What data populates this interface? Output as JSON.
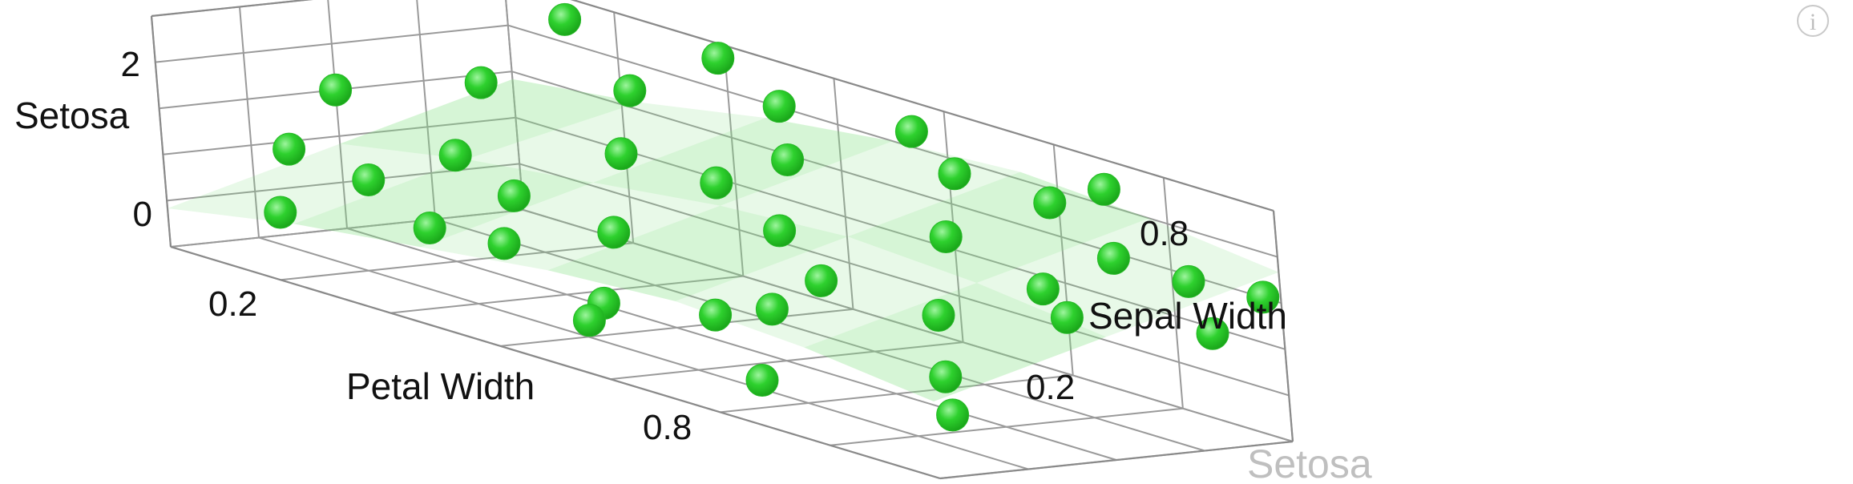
{
  "info_icon": "info-icon",
  "caption": "Setosa",
  "chart_data": {
    "type": "scatter3d",
    "title": "",
    "xlabel": "Petal Width",
    "ylabel": "Sepal Width",
    "zlabel": "Setosa",
    "x_ticks": [
      "0.2",
      "0.8"
    ],
    "y_ticks": [
      "0.2",
      "0.8"
    ],
    "z_ticks": [
      "0",
      "2"
    ],
    "xlim": [
      0,
      1
    ],
    "ylim": [
      0,
      1
    ],
    "zlim": [
      -0.5,
      2.5
    ],
    "grid": true,
    "point_color": "#2ed12e",
    "surface_color": "#7fe07f",
    "surface_bands": [
      {
        "name": "",
        "values": [
          [
            1.2,
            1.4,
            1.7,
            1.9,
            2.0,
            1.9,
            1.7
          ],
          [
            0.6,
            0.9,
            1.1,
            1.3,
            1.4,
            1.3,
            1.1
          ],
          [
            0.0,
            0.3,
            0.5,
            0.7,
            0.8,
            0.7,
            0.5
          ]
        ]
      }
    ],
    "points": [
      {
        "x": 0.0,
        "y": 0.5,
        "z": 1.3
      },
      {
        "x": 0.05,
        "y": 0.25,
        "z": 0.8
      },
      {
        "x": 0.1,
        "y": 0.7,
        "z": 1.6
      },
      {
        "x": 0.15,
        "y": 0.0,
        "z": 0.4
      },
      {
        "x": 0.2,
        "y": 0.4,
        "z": 1.1
      },
      {
        "x": 0.25,
        "y": 0.8,
        "z": 1.9
      },
      {
        "x": 0.3,
        "y": 0.1,
        "z": 0.6
      },
      {
        "x": 0.35,
        "y": 0.55,
        "z": 1.5
      },
      {
        "x": 0.4,
        "y": 0.9,
        "z": 2.1
      },
      {
        "x": 0.45,
        "y": 0.3,
        "z": 0.9
      },
      {
        "x": 0.5,
        "y": 0.7,
        "z": 1.8
      },
      {
        "x": 0.55,
        "y": 0.0,
        "z": 0.2
      },
      {
        "x": 0.6,
        "y": 0.45,
        "z": 1.3
      },
      {
        "x": 0.65,
        "y": 0.85,
        "z": 2.0
      },
      {
        "x": 0.7,
        "y": 0.2,
        "z": 0.7
      },
      {
        "x": 0.75,
        "y": 0.6,
        "z": 1.6
      },
      {
        "x": 0.8,
        "y": 0.95,
        "z": 2.2
      },
      {
        "x": 0.85,
        "y": 0.35,
        "z": 1.0
      },
      {
        "x": 0.9,
        "y": 0.75,
        "z": 1.7
      },
      {
        "x": 1.0,
        "y": 0.05,
        "z": 0.3
      },
      {
        "x": 0.95,
        "y": 0.5,
        "z": 1.2
      },
      {
        "x": 0.1,
        "y": 0.95,
        "z": 2.3
      },
      {
        "x": 0.3,
        "y": 0.95,
        "z": 2.4
      },
      {
        "x": 0.55,
        "y": 0.95,
        "z": 2.2
      },
      {
        "x": 0.75,
        "y": 0.9,
        "z": 1.9
      },
      {
        "x": 0.45,
        "y": 0.6,
        "z": 1.4
      },
      {
        "x": 0.2,
        "y": 0.15,
        "z": 0.9
      },
      {
        "x": 0.65,
        "y": 0.45,
        "z": 0.8
      },
      {
        "x": 0.85,
        "y": 0.65,
        "z": 1.2
      },
      {
        "x": 0.95,
        "y": 0.85,
        "z": 1.5
      },
      {
        "x": 1.0,
        "y": 0.95,
        "z": 1.4
      },
      {
        "x": 1.0,
        "y": 0.8,
        "z": 1.0
      },
      {
        "x": 0.9,
        "y": 0.25,
        "z": 0.4
      },
      {
        "x": 0.6,
        "y": 0.25,
        "z": 0.3
      },
      {
        "x": 0.35,
        "y": 0.2,
        "z": 0.5
      },
      {
        "x": 0.75,
        "y": 0.05,
        "z": 0.0
      },
      {
        "x": 0.25,
        "y": 0.45,
        "z": 0.7
      },
      {
        "x": 0.5,
        "y": 0.15,
        "z": 0.2
      }
    ]
  }
}
